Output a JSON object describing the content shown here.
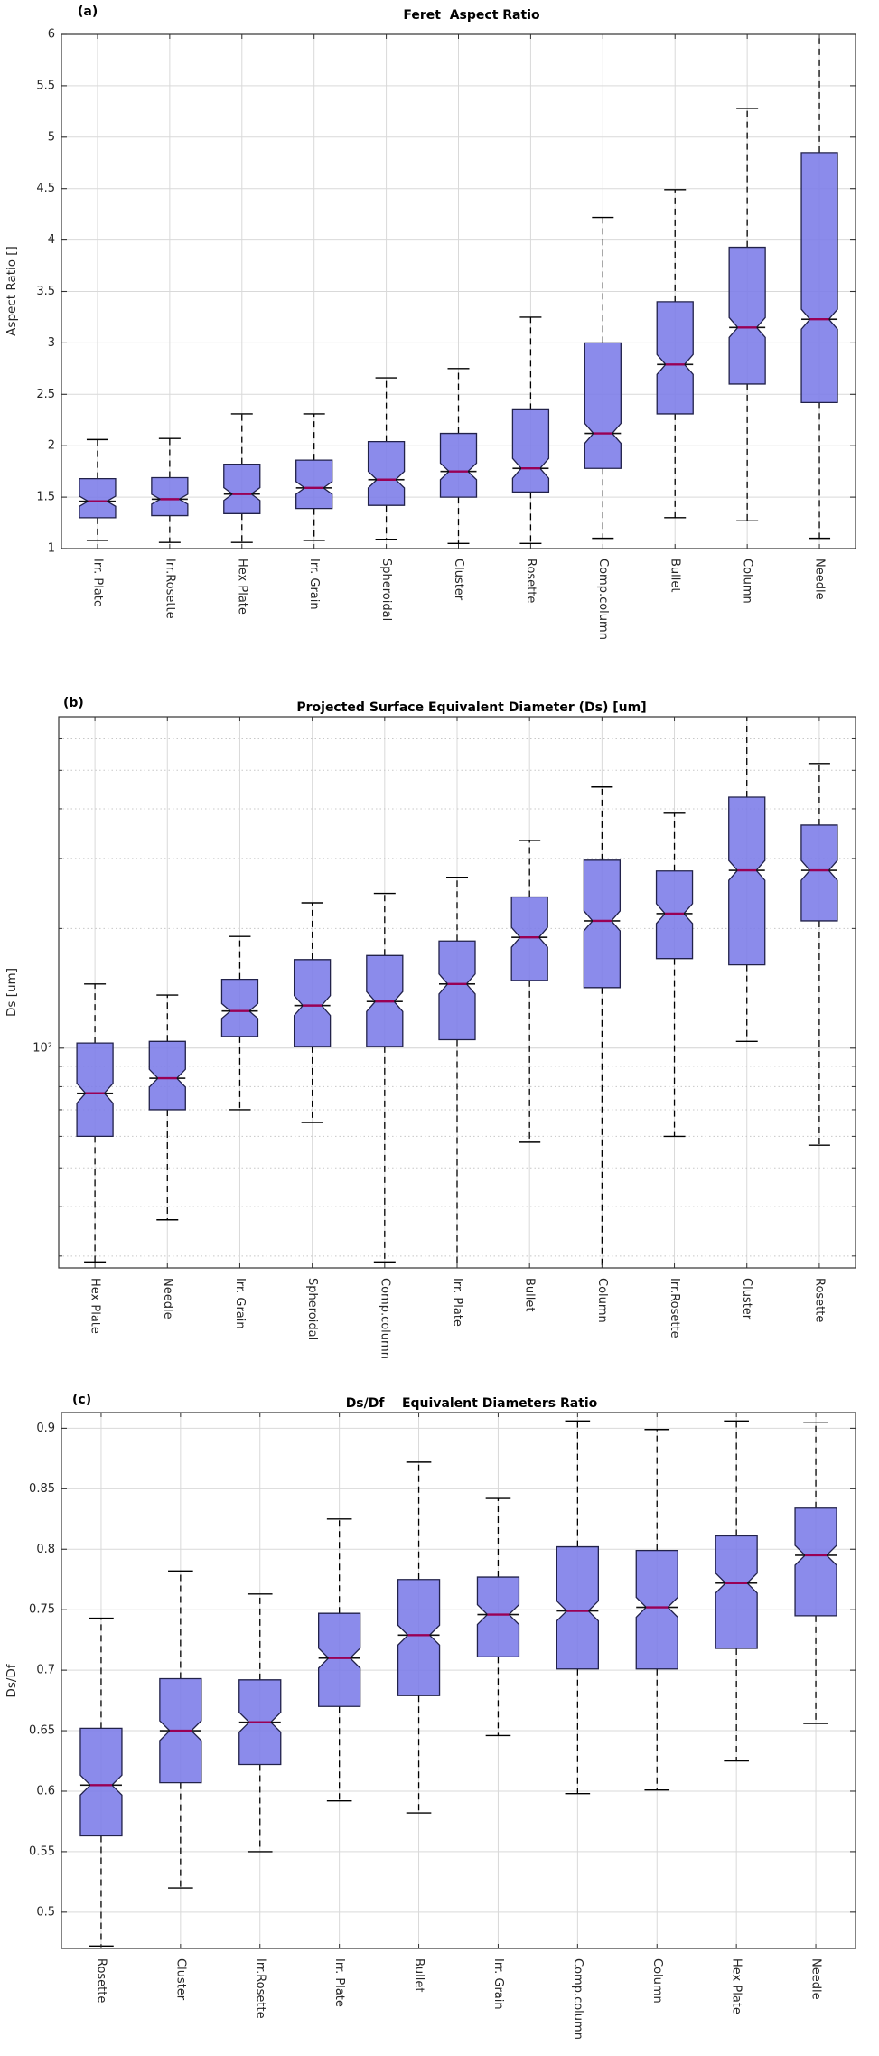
{
  "figure_background": "#ffffff",
  "colors": {
    "box_fill": "#7b7be8",
    "box_edge": "#22224a",
    "median_line": "#990055",
    "median_stub": "#111111",
    "whisker": "#000000",
    "grid_major": "#d9d9d9",
    "grid_minor": "#c8c8c8",
    "grid_log100": "#d2d2d2",
    "spine": "#333333",
    "tick_text": "#262626"
  },
  "chart_data": [
    {
      "type": "box",
      "panel_label": "(a)",
      "title": "Feret  Aspect Ratio",
      "ylabel": "Aspect Ratio []",
      "yscale": "linear",
      "ylim": [
        1,
        6
      ],
      "yticks": [
        1,
        1.5,
        2,
        2.5,
        3,
        3.5,
        4,
        4.5,
        5,
        5.5,
        6
      ],
      "ytick_labels": [
        "1",
        "1.5",
        "2",
        "2.5",
        "3",
        "3.5",
        "4",
        "4.5",
        "5",
        "5.5",
        "6"
      ],
      "minor_gridlines": [],
      "grid": "on",
      "notched": true,
      "legend": "none",
      "categories": [
        "Irr. Plate",
        "Irr.Rosette",
        "Hex Plate",
        "Irr. Grain",
        "Spheroidal",
        "Cluster",
        "Rosette",
        "Comp.column",
        "Bullet",
        "Column",
        "Needle"
      ],
      "boxes": [
        {
          "category": "Irr. Plate",
          "whisker_low": 1.08,
          "q1": 1.3,
          "median": 1.46,
          "q3": 1.68,
          "whisker_high": 2.06
        },
        {
          "category": "Irr.Rosette",
          "whisker_low": 1.06,
          "q1": 1.32,
          "median": 1.48,
          "q3": 1.69,
          "whisker_high": 2.07
        },
        {
          "category": "Hex Plate",
          "whisker_low": 1.06,
          "q1": 1.34,
          "median": 1.53,
          "q3": 1.82,
          "whisker_high": 2.31
        },
        {
          "category": "Irr. Grain",
          "whisker_low": 1.08,
          "q1": 1.39,
          "median": 1.59,
          "q3": 1.86,
          "whisker_high": 2.31
        },
        {
          "category": "Spheroidal",
          "whisker_low": 1.09,
          "q1": 1.42,
          "median": 1.67,
          "q3": 2.04,
          "whisker_high": 2.66
        },
        {
          "category": "Cluster",
          "whisker_low": 1.05,
          "q1": 1.5,
          "median": 1.75,
          "q3": 2.12,
          "whisker_high": 2.75
        },
        {
          "category": "Rosette",
          "whisker_low": 1.05,
          "q1": 1.55,
          "median": 1.78,
          "q3": 2.35,
          "whisker_high": 3.25
        },
        {
          "category": "Comp.column",
          "whisker_low": 1.1,
          "q1": 1.78,
          "median": 2.12,
          "q3": 3.0,
          "whisker_high": 4.22
        },
        {
          "category": "Bullet",
          "whisker_low": 1.3,
          "q1": 2.31,
          "median": 2.79,
          "q3": 3.4,
          "whisker_high": 4.49
        },
        {
          "category": "Column",
          "whisker_low": 1.27,
          "q1": 2.6,
          "median": 3.15,
          "q3": 3.93,
          "whisker_high": 5.28
        },
        {
          "category": "Needle",
          "whisker_low": 1.1,
          "q1": 2.42,
          "median": 3.23,
          "q3": 4.85,
          "whisker_high": 6.0,
          "whisker_high_clipped": true
        }
      ]
    },
    {
      "type": "box",
      "panel_label": "(b)",
      "title": "Projected Surface Equivalent Diameter (Ds) [um]",
      "ylabel": "Ds [um]",
      "yscale": "log",
      "ylim": [
        28,
        682
      ],
      "yticks": [
        100
      ],
      "ytick_labels": [
        "10²"
      ],
      "minor_gridlines": [
        30,
        40,
        50,
        60,
        70,
        80,
        90,
        200,
        300,
        400,
        500,
        600
      ],
      "grid": "on",
      "notched": true,
      "legend": "none",
      "categories": [
        "Hex Plate",
        "Needle",
        "Irr. Grain",
        "Spheroidal",
        "Comp.column",
        "Irr. Plate",
        "Bullet",
        "Column",
        "Irr.Rosette",
        "Cluster",
        "Rosette"
      ],
      "boxes": [
        {
          "category": "Hex Plate",
          "whisker_low": 29,
          "q1": 60,
          "median": 77,
          "q3": 103,
          "whisker_high": 145
        },
        {
          "category": "Needle",
          "whisker_low": 37,
          "q1": 70,
          "median": 84,
          "q3": 104,
          "whisker_high": 136
        },
        {
          "category": "Irr. Grain",
          "whisker_low": 70,
          "q1": 107,
          "median": 124,
          "q3": 149,
          "whisker_high": 191
        },
        {
          "category": "Spheroidal",
          "whisker_low": 65,
          "q1": 101,
          "median": 128,
          "q3": 167,
          "whisker_high": 232
        },
        {
          "category": "Comp.column",
          "whisker_low": 29,
          "q1": 101,
          "median": 131,
          "q3": 171,
          "whisker_high": 245
        },
        {
          "category": "Irr. Plate",
          "whisker_low": 28,
          "q1": 105,
          "median": 145,
          "q3": 186,
          "whisker_high": 269,
          "whisker_low_clipped": true
        },
        {
          "category": "Bullet",
          "whisker_low": 58,
          "q1": 148,
          "median": 190,
          "q3": 240,
          "whisker_high": 333
        },
        {
          "category": "Column",
          "whisker_low": 28,
          "q1": 142,
          "median": 209,
          "q3": 297,
          "whisker_high": 454,
          "whisker_low_clipped": true
        },
        {
          "category": "Irr.Rosette",
          "whisker_low": 60,
          "q1": 168,
          "median": 218,
          "q3": 279,
          "whisker_high": 390
        },
        {
          "category": "Cluster",
          "whisker_low": 104,
          "q1": 162,
          "median": 280,
          "q3": 428,
          "whisker_high": 682,
          "whisker_high_clipped": true
        },
        {
          "category": "Rosette",
          "whisker_low": 57,
          "q1": 209,
          "median": 280,
          "q3": 364,
          "whisker_high": 520
        }
      ]
    },
    {
      "type": "box",
      "panel_label": "(c)",
      "title": "Ds/Df    Equivalent Diameters Ratio",
      "ylabel": "Ds/Df",
      "yscale": "linear",
      "ylim": [
        0.47,
        0.913
      ],
      "yticks": [
        0.5,
        0.55,
        0.6,
        0.65,
        0.7,
        0.75,
        0.8,
        0.85,
        0.9
      ],
      "ytick_labels": [
        "0.5",
        "0.55",
        "0.6",
        "0.65",
        "0.7",
        "0.75",
        "0.8",
        "0.85",
        "0.9"
      ],
      "minor_gridlines": [],
      "grid": "on",
      "notched": true,
      "legend": "none",
      "categories": [
        "Rosette",
        "Cluster",
        "Irr.Rosette",
        "Irr. Plate",
        "Bullet",
        "Irr. Grain",
        "Comp.column",
        "Column",
        "Hex Plate",
        "Needle"
      ],
      "boxes": [
        {
          "category": "Rosette",
          "whisker_low": 0.472,
          "q1": 0.563,
          "median": 0.605,
          "q3": 0.652,
          "whisker_high": 0.743
        },
        {
          "category": "Cluster",
          "whisker_low": 0.52,
          "q1": 0.607,
          "median": 0.65,
          "q3": 0.693,
          "whisker_high": 0.782
        },
        {
          "category": "Irr.Rosette",
          "whisker_low": 0.55,
          "q1": 0.622,
          "median": 0.657,
          "q3": 0.692,
          "whisker_high": 0.763
        },
        {
          "category": "Irr. Plate",
          "whisker_low": 0.592,
          "q1": 0.67,
          "median": 0.71,
          "q3": 0.747,
          "whisker_high": 0.825
        },
        {
          "category": "Bullet",
          "whisker_low": 0.582,
          "q1": 0.679,
          "median": 0.729,
          "q3": 0.775,
          "whisker_high": 0.872
        },
        {
          "category": "Irr. Grain",
          "whisker_low": 0.646,
          "q1": 0.711,
          "median": 0.746,
          "q3": 0.777,
          "whisker_high": 0.842
        },
        {
          "category": "Comp.column",
          "whisker_low": 0.598,
          "q1": 0.701,
          "median": 0.749,
          "q3": 0.802,
          "whisker_high": 0.906
        },
        {
          "category": "Column",
          "whisker_low": 0.601,
          "q1": 0.701,
          "median": 0.752,
          "q3": 0.799,
          "whisker_high": 0.899
        },
        {
          "category": "Hex Plate",
          "whisker_low": 0.625,
          "q1": 0.718,
          "median": 0.772,
          "q3": 0.811,
          "whisker_high": 0.906
        },
        {
          "category": "Needle",
          "whisker_low": 0.656,
          "q1": 0.745,
          "median": 0.795,
          "q3": 0.834,
          "whisker_high": 0.905
        }
      ]
    }
  ]
}
